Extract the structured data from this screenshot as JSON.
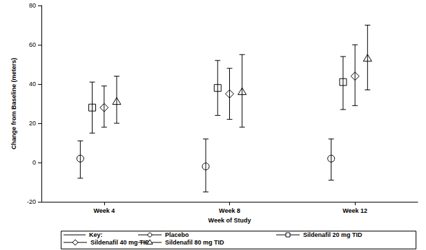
{
  "chart_data": {
    "type": "scatter",
    "x_label": "Week of Study",
    "y_label": "Change from Baseline (meters)",
    "legend_title": "Key:",
    "legend": "bottom",
    "grid": false,
    "categories": [
      "Week 4",
      "Week 8",
      "Week 12"
    ],
    "ylim": [
      -20,
      80
    ],
    "yticks": [
      -20,
      0,
      20,
      40,
      60,
      80
    ],
    "series": [
      {
        "name": "Placebo",
        "color": "#000000",
        "marker": "circle",
        "values": [
          2,
          -2,
          2
        ],
        "error_low": [
          -8,
          -15,
          -9
        ],
        "error_high": [
          11,
          12,
          12
        ]
      },
      {
        "name": "Sildenafil 20 mg TID",
        "color": "#000000",
        "marker": "square",
        "values": [
          28,
          38,
          41
        ],
        "error_low": [
          15,
          24,
          27
        ],
        "error_high": [
          41,
          52,
          54
        ]
      },
      {
        "name": "Sildenafil 40 mg TID",
        "color": "#000000",
        "marker": "diamond",
        "values": [
          28,
          35,
          44
        ],
        "error_low": [
          18,
          22,
          29
        ],
        "error_high": [
          39,
          48,
          60
        ]
      },
      {
        "name": "Sildenafil 80 mg TID",
        "color": "#000000",
        "marker": "triangle",
        "values": [
          31,
          36,
          53
        ],
        "error_low": [
          20,
          18,
          37
        ],
        "error_high": [
          44,
          55,
          70
        ]
      }
    ]
  }
}
